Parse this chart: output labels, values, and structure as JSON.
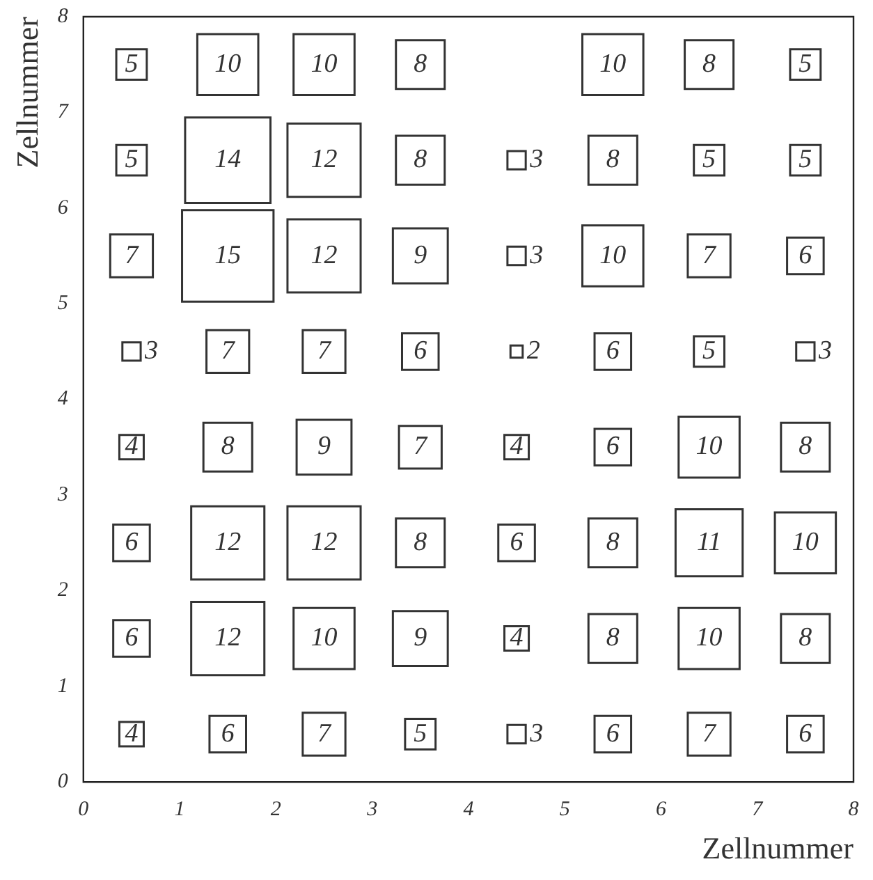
{
  "chart_data": {
    "type": "heatmap",
    "xlabel": "Zellnummer",
    "ylabel": "Zellnummer",
    "xlim": [
      0,
      8
    ],
    "ylim": [
      0,
      8
    ],
    "xticks": [
      0,
      1,
      2,
      3,
      4,
      5,
      6,
      7,
      8
    ],
    "yticks": [
      0,
      1,
      2,
      3,
      4,
      5,
      6,
      7,
      8
    ],
    "data_labels": true,
    "color": "#333333",
    "cells": [
      [
        5,
        10,
        10,
        8,
        null,
        10,
        8,
        5
      ],
      [
        5,
        14,
        12,
        8,
        3,
        8,
        5,
        5
      ],
      [
        7,
        15,
        12,
        9,
        3,
        10,
        7,
        6
      ],
      [
        3,
        7,
        7,
        6,
        2,
        6,
        5,
        3
      ],
      [
        4,
        8,
        9,
        7,
        4,
        6,
        10,
        8
      ],
      [
        6,
        12,
        12,
        8,
        6,
        8,
        11,
        10
      ],
      [
        6,
        12,
        10,
        9,
        4,
        8,
        10,
        8
      ],
      [
        4,
        6,
        7,
        5,
        3,
        6,
        7,
        6
      ]
    ]
  }
}
